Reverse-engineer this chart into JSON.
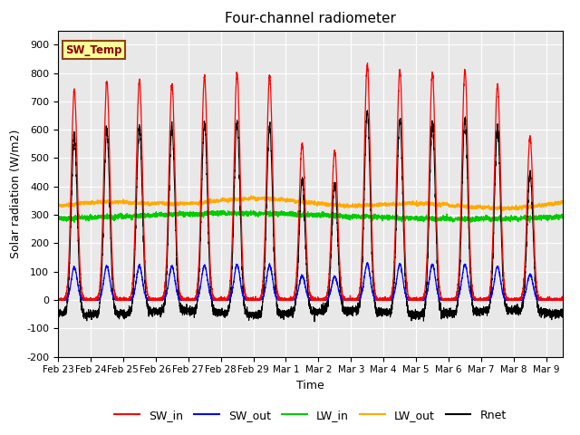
{
  "title": "Four-channel radiometer",
  "xlabel": "Time",
  "ylabel": "Solar radiation (W/m2)",
  "ylim": [
    -200,
    950
  ],
  "yticks": [
    -200,
    -100,
    0,
    100,
    200,
    300,
    400,
    500,
    600,
    700,
    800,
    900
  ],
  "bg_color": "#ffffff",
  "plot_bg_color": "#e8e8e8",
  "colors": {
    "SW_in": "#ff0000",
    "SW_out": "#0000ff",
    "LW_in": "#00cc00",
    "LW_out": "#ffaa00",
    "Rnet": "#000000"
  },
  "annotation_text": "SW_Temp",
  "annotation_box_color": "#ffff99",
  "annotation_box_edge": "#8b4513",
  "tick_labels": [
    "Feb 23",
    "Feb 24",
    "Feb 25",
    "Feb 26",
    "Feb 27",
    "Feb 28",
    "Feb 29",
    "Mar 1",
    "Mar 2",
    "Mar 3",
    "Mar 4",
    "Mar 5",
    "Mar 6",
    "Mar 7",
    "Mar 8",
    "Mar 9"
  ],
  "sw_in_peaks": [
    740,
    770,
    775,
    760,
    785,
    800,
    790,
    550,
    525,
    830,
    810,
    800,
    810,
    760,
    575,
    0
  ],
  "sw_in_spread": 2.2,
  "sw_out_ratio": 0.155,
  "lw_in_mean": 295,
  "lw_out_mean": 345,
  "rnet_night": -65,
  "n_days": 15.5
}
